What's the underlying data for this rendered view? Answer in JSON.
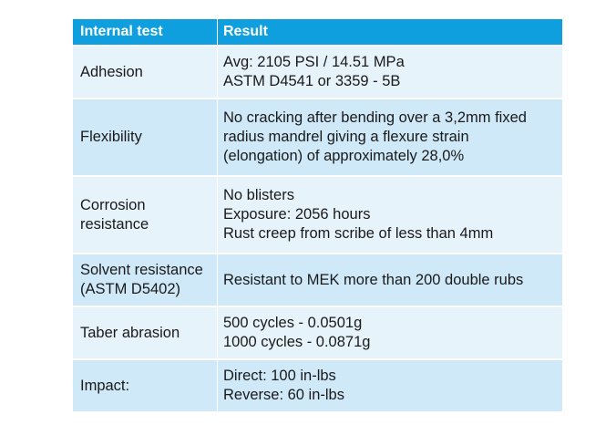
{
  "table": {
    "headers": [
      "Internal test",
      "Result"
    ],
    "rows": [
      {
        "test": [
          "Adhesion"
        ],
        "result": [
          "Avg: 2105 PSI / 14.51 MPa",
          "ASTM D4541 or 3359 - 5B"
        ]
      },
      {
        "test": [
          "Flexibility"
        ],
        "result": [
          "No cracking after bending over a 3,2mm fixed",
          "radius mandrel giving a flexure strain",
          "(elongation) of approximately 28,0%"
        ]
      },
      {
        "test": [
          "Corrosion",
          "resistance"
        ],
        "result": [
          "No blisters",
          "Exposure: 2056 hours",
          "Rust creep from scribe of less than 4mm"
        ]
      },
      {
        "test": [
          "Solvent resistance",
          "(ASTM D5402)"
        ],
        "result": [
          "Resistant to MEK more than 200 double rubs"
        ]
      },
      {
        "test": [
          "Taber abrasion"
        ],
        "result": [
          "500 cycles - 0.0501g",
          "1000 cycles - 0.0871g"
        ]
      },
      {
        "test": [
          "Impact:"
        ],
        "result": [
          "Direct: 100 in-lbs",
          "Reverse: 60 in-lbs"
        ]
      }
    ]
  },
  "colors": {
    "header_bg": "#0f9fde",
    "row_light": "#e7f3fb",
    "row_dark": "#cfe9f8"
  }
}
